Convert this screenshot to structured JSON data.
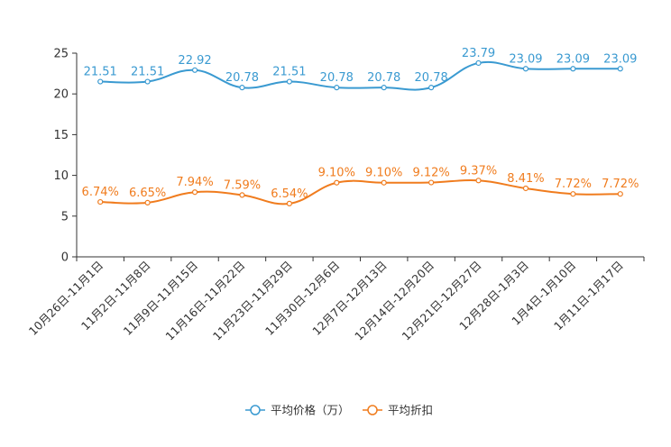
{
  "chart_data": {
    "type": "line",
    "title": "",
    "xlabel": "",
    "ylabel": "",
    "ylim": [
      0,
      25
    ],
    "yticks": [
      0,
      5,
      10,
      15,
      20,
      25
    ],
    "grid": false,
    "legend_position": "bottom-center",
    "categories": [
      "10月26日-11月1日",
      "11月2日-11月8日",
      "11月9日-11月15日",
      "11月16日-11月22日",
      "11月23日-11月29日",
      "11月30日-12月6日",
      "12月7日-12月13日",
      "12月14日-12月20日",
      "12月21日-12月27日",
      "12月28日-1月3日",
      "1月4日-1月10日",
      "1月11日-1月17日"
    ],
    "series": [
      {
        "name": "平均价格（万）",
        "color": "#3a9ad1",
        "values": [
          21.51,
          21.51,
          22.92,
          20.78,
          21.51,
          20.78,
          20.78,
          20.78,
          23.79,
          23.09,
          23.09,
          23.09
        ],
        "labels": [
          "21.51",
          "21.51",
          "22.92",
          "20.78",
          "21.51",
          "20.78",
          "20.78",
          "20.78",
          "23.79",
          "23.09",
          "23.09",
          "23.09"
        ]
      },
      {
        "name": "平均折扣",
        "color": "#f07c1e",
        "values": [
          6.74,
          6.65,
          7.94,
          7.59,
          6.54,
          9.1,
          9.1,
          9.12,
          9.37,
          8.41,
          7.72,
          7.72
        ],
        "labels": [
          "6.74%",
          "6.65%",
          "7.94%",
          "7.59%",
          "6.54%",
          "9.10%",
          "9.10%",
          "9.12%",
          "9.37%",
          "8.41%",
          "7.72%",
          "7.72%"
        ]
      }
    ]
  }
}
